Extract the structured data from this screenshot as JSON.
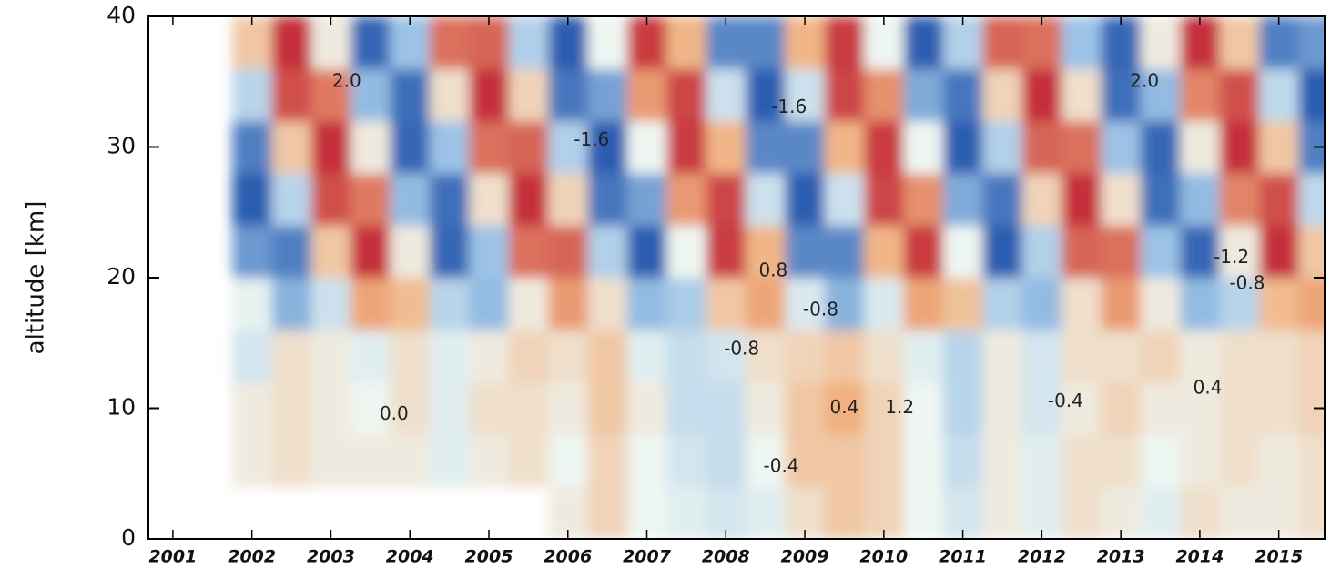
{
  "chart_data": {
    "type": "heatmap",
    "y_label": "altitude [km]",
    "xlim": [
      2000.69,
      2015.58
    ],
    "ylim": [
      0,
      40
    ],
    "xticks": [
      2001,
      2002,
      2003,
      2004,
      2005,
      2006,
      2007,
      2008,
      2009,
      2010,
      2011,
      2012,
      2013,
      2014,
      2015
    ],
    "yticks": [
      0,
      10,
      20,
      30,
      40
    ],
    "colormap": [
      "#2a5db0",
      "#9cc3e6",
      "#eef6f2",
      "#f1b07d",
      "#c52f3b"
    ],
    "x": [
      2001.0,
      2001.5,
      2002.0,
      2002.5,
      2003.0,
      2003.5,
      2004.0,
      2004.5,
      2005.0,
      2005.5,
      2006.0,
      2006.5,
      2007.0,
      2007.5,
      2008.0,
      2008.5,
      2009.0,
      2009.5,
      2010.0,
      2010.5,
      2011.0,
      2011.5,
      2012.0,
      2012.5,
      2013.0,
      2013.5,
      2014.0,
      2014.5,
      2015.0,
      2015.5
    ],
    "y": [
      2,
      6,
      10,
      14,
      18,
      22,
      26,
      30,
      34,
      38
    ],
    "z": [
      [
        null,
        null,
        null,
        null,
        null,
        null,
        null,
        null,
        null,
        null,
        0.2,
        0.6,
        0.0,
        -0.2,
        -0.4,
        -0.2,
        0.4,
        0.8,
        0.6,
        0.0,
        -0.4,
        0.2,
        -0.2,
        0.4,
        0.2,
        -0.2,
        0.4,
        0.2,
        0.2,
        0.4
      ],
      [
        null,
        null,
        0.2,
        0.4,
        0.2,
        0.2,
        0.2,
        -0.2,
        0.2,
        0.4,
        0.0,
        0.6,
        0.0,
        -0.4,
        -0.6,
        0.0,
        0.8,
        0.8,
        0.6,
        0.0,
        -0.6,
        0.2,
        -0.2,
        0.4,
        0.4,
        0.0,
        0.2,
        0.4,
        0.2,
        0.4
      ],
      [
        null,
        null,
        0.2,
        0.4,
        0.2,
        0.0,
        0.4,
        -0.2,
        0.4,
        0.4,
        0.2,
        0.8,
        0.2,
        -0.6,
        -0.6,
        0.2,
        0.8,
        1.2,
        0.6,
        0.0,
        -0.8,
        0.2,
        -0.4,
        0.2,
        0.6,
        0.2,
        0.2,
        0.4,
        0.4,
        0.6
      ],
      [
        null,
        null,
        -0.4,
        0.4,
        0.2,
        -0.2,
        0.4,
        -0.2,
        0.2,
        0.6,
        0.4,
        0.8,
        -0.2,
        -0.6,
        -0.4,
        0.4,
        0.6,
        0.8,
        0.4,
        -0.2,
        -0.8,
        0.2,
        -0.4,
        0.4,
        0.4,
        0.6,
        0.2,
        0.4,
        0.4,
        0.6
      ],
      [
        null,
        null,
        -0.1,
        -1.4,
        -0.5,
        1.3,
        1.0,
        -0.8,
        -1.3,
        0.2,
        1.4,
        0.4,
        -1.3,
        -1.0,
        0.8,
        1.3,
        -0.3,
        -1.4,
        -0.3,
        1.3,
        0.9,
        -0.9,
        -1.3,
        0.4,
        1.4,
        0.2,
        -1.3,
        -0.8,
        1.0,
        1.3
      ],
      [
        null,
        null,
        -1.7,
        -2.0,
        0.8,
        2.4,
        0.2,
        -2.3,
        -1.2,
        1.8,
        1.9,
        -0.9,
        -2.4,
        0.0,
        2.3,
        1.1,
        -1.9,
        -1.9,
        1.1,
        2.3,
        0.0,
        -2.4,
        -0.9,
        1.9,
        1.8,
        -1.2,
        -2.3,
        0.2,
        2.4,
        0.8
      ],
      [
        null,
        null,
        -2.4,
        -0.8,
        2.1,
        1.7,
        -1.3,
        -2.2,
        0.4,
        2.4,
        0.6,
        -2.1,
        -1.6,
        1.4,
        2.2,
        -0.5,
        -2.4,
        -0.5,
        2.2,
        1.5,
        -1.5,
        -2.1,
        0.6,
        2.4,
        0.4,
        -2.2,
        -1.3,
        1.6,
        2.1,
        -0.7
      ],
      [
        null,
        null,
        -2.0,
        0.8,
        2.4,
        0.2,
        -2.3,
        -1.2,
        1.8,
        1.9,
        -0.9,
        -2.4,
        0.0,
        2.3,
        1.1,
        -1.9,
        -1.9,
        1.1,
        2.3,
        0.0,
        -2.4,
        -0.9,
        1.9,
        1.8,
        -1.2,
        -2.3,
        0.2,
        2.4,
        0.8,
        -2.0
      ],
      [
        null,
        null,
        -0.8,
        2.1,
        1.7,
        -1.3,
        -2.2,
        0.4,
        2.4,
        0.6,
        -2.1,
        -1.6,
        1.4,
        2.2,
        -0.5,
        -2.4,
        -0.5,
        2.2,
        1.5,
        -1.5,
        -2.1,
        0.6,
        2.4,
        0.4,
        -2.2,
        -1.3,
        1.6,
        2.1,
        -0.7,
        -2.4
      ],
      [
        null,
        null,
        0.8,
        2.4,
        0.2,
        -2.3,
        -1.2,
        1.8,
        1.9,
        -0.9,
        -2.4,
        0.0,
        2.3,
        1.1,
        -1.9,
        -1.9,
        1.1,
        2.3,
        0.0,
        -2.4,
        -0.9,
        1.9,
        1.8,
        -1.2,
        -2.3,
        0.2,
        2.4,
        0.8,
        -2.0,
        -1.7
      ]
    ],
    "annotations": [
      {
        "text": "-1.6",
        "x": 2006.3,
        "y": 30.5
      },
      {
        "text": "-1.6",
        "x": 2008.8,
        "y": 33
      },
      {
        "text": "-1.2",
        "x": 2014.4,
        "y": 21.5
      },
      {
        "text": "-0.8",
        "x": 2014.6,
        "y": 19.5
      },
      {
        "text": "0.8",
        "x": 2008.6,
        "y": 20.5
      },
      {
        "text": "-0.8",
        "x": 2009.2,
        "y": 17.5
      },
      {
        "text": "-0.8",
        "x": 2008.2,
        "y": 14.5
      },
      {
        "text": "1.2",
        "x": 2010.2,
        "y": 10
      },
      {
        "text": "0.4",
        "x": 2009.5,
        "y": 10
      },
      {
        "text": "0.0",
        "x": 2003.8,
        "y": 9.5
      },
      {
        "text": "-0.4",
        "x": 2012.3,
        "y": 10.5
      },
      {
        "text": "-0.4",
        "x": 2008.7,
        "y": 5.5
      },
      {
        "text": "0.4",
        "x": 2014.1,
        "y": 11.5
      },
      {
        "text": "2.0",
        "x": 2003.2,
        "y": 35
      },
      {
        "text": "2.0",
        "x": 2013.3,
        "y": 35
      }
    ]
  }
}
